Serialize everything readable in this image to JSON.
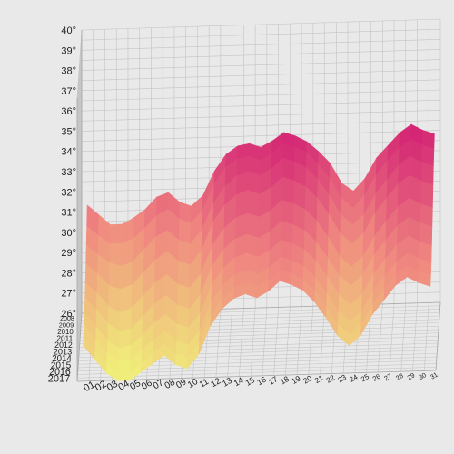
{
  "chart_data": {
    "type": "surface-3d",
    "title": "",
    "z_axis": {
      "unit": "°",
      "range": [
        26,
        40
      ],
      "ticks": [
        "26°",
        "27°",
        "28°",
        "29°",
        "30°",
        "31°",
        "32°",
        "33°",
        "34°",
        "35°",
        "36°",
        "37°",
        "38°",
        "39°",
        "40°"
      ]
    },
    "day_axis": {
      "ticks": [
        "01",
        "02",
        "03",
        "04",
        "05",
        "06",
        "07",
        "08",
        "09",
        "10",
        "11",
        "12",
        "13",
        "14",
        "15",
        "16",
        "17",
        "18",
        "19",
        "20",
        "21",
        "22",
        "23",
        "24",
        "25",
        "26",
        "27",
        "28",
        "29",
        "30",
        "31"
      ]
    },
    "year_axis": {
      "ticks": [
        "2008",
        "2009",
        "2010",
        "2011",
        "2012",
        "2013",
        "2014",
        "2015",
        "2016",
        "2017"
      ]
    },
    "series": [
      {
        "year": "2008",
        "values": [
          31.5,
          31.0,
          30.5,
          30.5,
          30.8,
          31.2,
          31.8,
          32.0,
          31.5,
          31.3,
          31.8,
          33.0,
          33.8,
          34.2,
          34.3,
          34.1,
          34.4,
          34.8,
          34.6,
          34.3,
          33.8,
          33.2,
          32.2,
          31.8,
          32.4,
          33.4,
          34.0,
          34.6,
          35.0,
          34.7,
          34.5
        ]
      },
      {
        "year": "2009",
        "values": [
          30.8,
          30.3,
          29.9,
          29.9,
          30.1,
          30.6,
          31.2,
          31.5,
          31.0,
          30.8,
          31.4,
          32.7,
          33.5,
          33.9,
          34.0,
          33.8,
          34.1,
          34.6,
          34.4,
          34.1,
          33.5,
          32.8,
          31.8,
          31.3,
          31.9,
          32.9,
          33.6,
          34.2,
          34.6,
          34.3,
          34.1
        ]
      },
      {
        "year": "2010",
        "values": [
          30.2,
          29.7,
          29.3,
          29.1,
          29.3,
          29.9,
          30.5,
          30.8,
          30.3,
          30.1,
          30.8,
          32.1,
          32.9,
          33.4,
          33.6,
          33.4,
          33.7,
          34.2,
          34.0,
          33.7,
          33.1,
          32.3,
          31.3,
          30.8,
          31.3,
          32.3,
          33.0,
          33.7,
          34.1,
          33.8,
          33.6
        ]
      },
      {
        "year": "2011",
        "values": [
          29.6,
          29.1,
          28.5,
          28.3,
          28.5,
          29.1,
          29.7,
          30.1,
          29.6,
          29.4,
          30.1,
          31.5,
          32.3,
          32.8,
          33.0,
          32.8,
          33.1,
          33.6,
          33.4,
          33.1,
          32.5,
          31.7,
          30.7,
          30.2,
          30.7,
          31.7,
          32.4,
          33.1,
          33.5,
          33.2,
          33.0
        ]
      },
      {
        "year": "2012",
        "values": [
          29.0,
          28.5,
          27.8,
          27.5,
          27.7,
          28.3,
          28.9,
          29.3,
          28.8,
          28.6,
          29.3,
          30.7,
          31.5,
          32.0,
          32.2,
          32.0,
          32.3,
          32.8,
          32.6,
          32.3,
          31.7,
          30.9,
          29.9,
          29.4,
          29.9,
          30.9,
          31.6,
          32.3,
          32.7,
          32.4,
          32.2
        ]
      },
      {
        "year": "2013",
        "values": [
          28.6,
          28.0,
          27.3,
          26.9,
          27.0,
          27.6,
          28.2,
          28.6,
          28.1,
          27.9,
          28.6,
          30.0,
          30.8,
          31.3,
          31.5,
          31.3,
          31.6,
          32.1,
          31.9,
          31.6,
          31.0,
          30.2,
          29.3,
          28.8,
          29.3,
          30.3,
          31.0,
          31.7,
          32.1,
          31.8,
          31.6
        ]
      },
      {
        "year": "2014",
        "values": [
          28.2,
          27.5,
          26.8,
          26.4,
          26.5,
          27.0,
          27.6,
          28.0,
          27.5,
          27.3,
          28.0,
          29.4,
          30.2,
          30.7,
          30.9,
          30.7,
          31.0,
          31.5,
          31.3,
          31.0,
          30.4,
          29.6,
          28.7,
          28.2,
          28.7,
          29.7,
          30.4,
          31.1,
          31.5,
          31.2,
          31.0
        ]
      },
      {
        "year": "2015",
        "values": [
          27.9,
          27.2,
          26.5,
          26.1,
          26.1,
          26.6,
          27.1,
          27.5,
          27.0,
          26.8,
          27.5,
          28.9,
          29.7,
          30.2,
          30.4,
          30.2,
          30.5,
          31.0,
          30.8,
          30.5,
          29.9,
          29.1,
          28.2,
          27.7,
          28.2,
          29.2,
          29.9,
          30.6,
          31.0,
          30.7,
          30.5
        ]
      },
      {
        "year": "2016",
        "values": [
          27.7,
          27.0,
          26.3,
          25.9,
          25.9,
          26.3,
          26.8,
          27.2,
          26.7,
          26.5,
          27.2,
          28.6,
          29.4,
          29.9,
          30.1,
          29.9,
          30.2,
          30.7,
          30.5,
          30.2,
          29.6,
          28.8,
          27.9,
          27.4,
          27.9,
          28.9,
          29.6,
          30.3,
          30.7,
          30.4,
          30.2
        ]
      },
      {
        "year": "2017",
        "values": [
          27.6,
          26.9,
          26.2,
          25.8,
          25.8,
          26.2,
          26.6,
          27.0,
          26.5,
          26.3,
          27.0,
          28.4,
          29.2,
          29.7,
          29.9,
          29.7,
          30.0,
          30.5,
          30.3,
          30.0,
          29.4,
          28.6,
          27.7,
          27.2,
          27.7,
          28.7,
          29.4,
          30.1,
          30.5,
          30.2,
          30.0
        ]
      }
    ],
    "colors": {
      "low": "#f0ee7a",
      "mid": "#f08a80",
      "high": "#d21e74",
      "background": "#e9e9e9"
    },
    "grid": true,
    "legend": "none"
  }
}
